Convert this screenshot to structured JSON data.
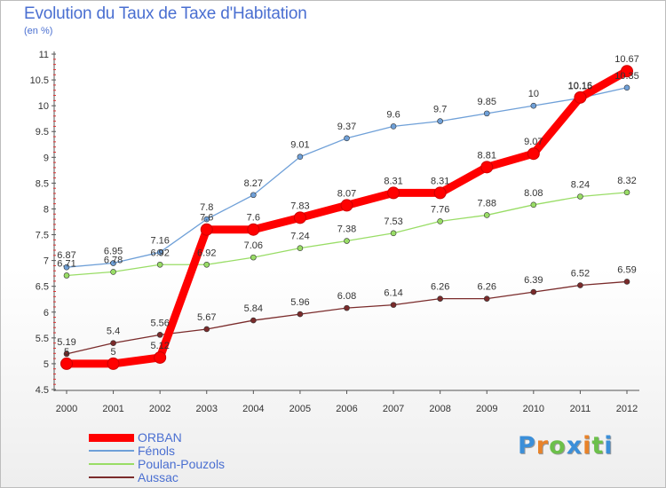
{
  "title": "Evolution du Taux de Taxe d'Habitation",
  "subtitle": "(en %)",
  "chart_data": {
    "type": "line",
    "x": [
      "2000",
      "2001",
      "2002",
      "2003",
      "2004",
      "2005",
      "2006",
      "2007",
      "2008",
      "2009",
      "2010",
      "2011",
      "2012"
    ],
    "ylim": [
      4.5,
      11
    ],
    "yticks": [
      "4.5",
      "5",
      "5.5",
      "6",
      "6.5",
      "7",
      "7.5",
      "8",
      "8.5",
      "9",
      "9.5",
      "10",
      "10.5",
      "11"
    ],
    "grid": false,
    "legend_position": "bottom-left",
    "series": [
      {
        "name": "ORBAN",
        "color": "#ff0000",
        "values": [
          5,
          5,
          5.12,
          7.6,
          7.6,
          7.83,
          8.07,
          8.31,
          8.31,
          8.81,
          9.07,
          10.16,
          10.67
        ],
        "labels": [
          "5",
          "5",
          "5.12",
          "7.6",
          "7.6",
          "7.83",
          "8.07",
          "8.31",
          "8.31",
          "8.81",
          "9.07",
          "10.16",
          "10.67"
        ]
      },
      {
        "name": "Fénols",
        "color": "#6fa0d8",
        "values": [
          6.87,
          6.95,
          7.16,
          7.8,
          8.27,
          9.01,
          9.37,
          9.6,
          9.7,
          9.85,
          10,
          10.15,
          10.35
        ],
        "labels": [
          "6.87",
          "6.95",
          "7.16",
          "7.8",
          "8.27",
          "9.01",
          "9.37",
          "9.6",
          "9.7",
          "9.85",
          "10",
          "10.15",
          "10.35"
        ]
      },
      {
        "name": "Poulan-Pouzols",
        "color": "#99dd66",
        "values": [
          6.71,
          6.78,
          6.92,
          6.92,
          7.06,
          7.24,
          7.38,
          7.53,
          7.76,
          7.88,
          8.08,
          8.24,
          8.32
        ],
        "labels": [
          "6.71",
          "6.78",
          "6.92",
          "6.92",
          "7.06",
          "7.24",
          "7.38",
          "7.53",
          "7.76",
          "7.88",
          "8.08",
          "8.24",
          "8.32"
        ]
      },
      {
        "name": "Aussac",
        "color": "#7a2b2b",
        "values": [
          5.19,
          5.4,
          5.56,
          5.67,
          5.84,
          5.96,
          6.08,
          6.14,
          6.26,
          6.26,
          6.39,
          6.52,
          6.59
        ],
        "labels": [
          "5.19",
          "5.4",
          "5.56",
          "5.67",
          "5.84",
          "5.96",
          "6.08",
          "6.14",
          "6.26",
          "6.26",
          "6.39",
          "6.52",
          "6.59"
        ]
      }
    ]
  },
  "logo": {
    "letters": [
      "P",
      "r",
      "o",
      "x",
      "i",
      "t",
      "i"
    ],
    "colors": [
      "#3b8fd9",
      "#e8832a",
      "#6cc04a",
      "#3b8fd9",
      "#e8832a",
      "#6cc04a",
      "#3b8fd9"
    ]
  }
}
